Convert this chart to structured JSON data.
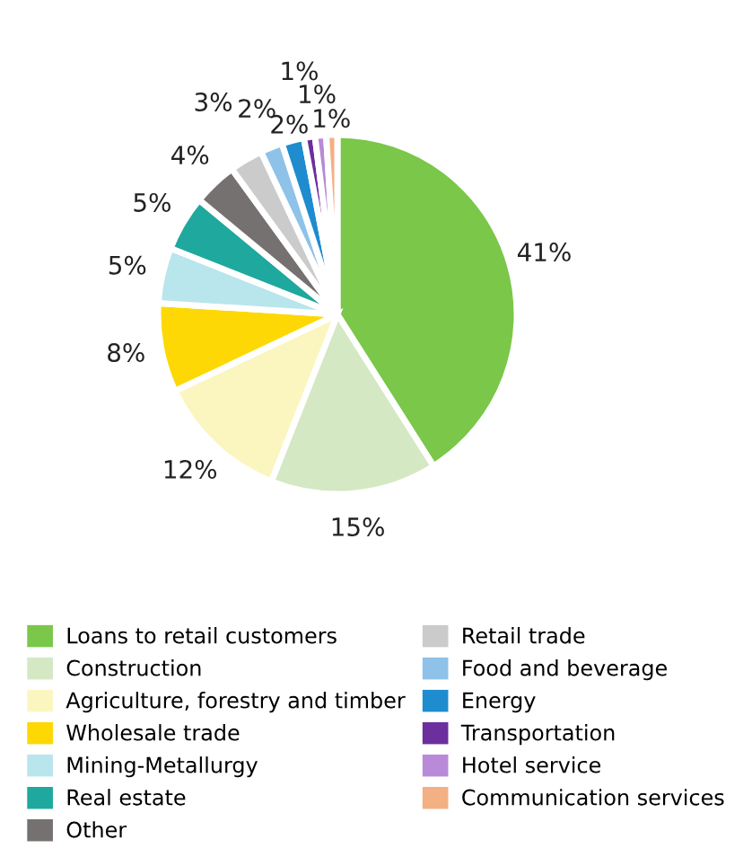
{
  "chart_data": {
    "type": "pie",
    "categories": [
      "Loans to retail customers",
      "Construction",
      "Agriculture, forestry and timber",
      "Wholesale trade",
      "Mining-Metallurgy",
      "Real estate",
      "Other",
      "Retail trade",
      "Food and beverage",
      "Energy",
      "Transportation",
      "Hotel service",
      "Communication services"
    ],
    "values": [
      41,
      15,
      12,
      8,
      5,
      5,
      4,
      3,
      2,
      2,
      1,
      1,
      1
    ],
    "colors": [
      "#7ac74a",
      "#d5e8c4",
      "#fbf6c0",
      "#fdd804",
      "#b9e5ec",
      "#1fa89e",
      "#757170",
      "#cbcbcb",
      "#8ec2e8",
      "#1e8ccf",
      "#6d2e9e",
      "#b98ad8",
      "#f3b083"
    ],
    "value_labels": [
      "41%",
      "15%",
      "12%",
      "8%",
      "5%",
      "5%",
      "4%",
      "3%",
      "2%",
      "2%",
      "1%",
      "1%",
      "1%"
    ],
    "legend": "bottom"
  }
}
